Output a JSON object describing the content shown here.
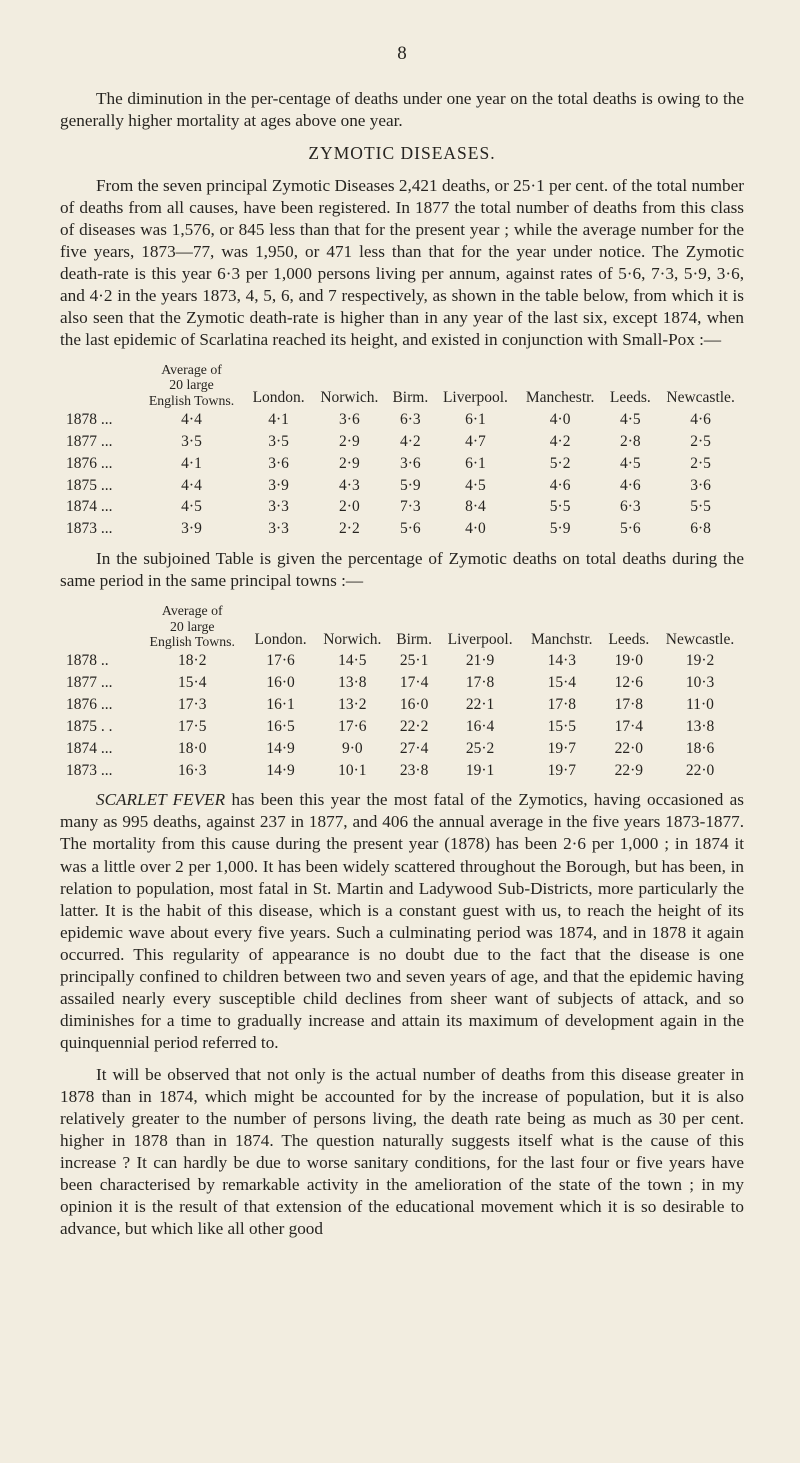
{
  "page_number": "8",
  "colors": {
    "bg": "#f2ede0",
    "ink": "#262420"
  },
  "fonts": {
    "body_pt": 17.2,
    "table_pt": 15.5,
    "header_pt": 17.5
  },
  "para1": "The diminution in the per-centage of deaths under one year on the total deaths is owing to the generally higher mortality at ages above one year.",
  "heading_zymotic": "ZYMOTIC DISEASES.",
  "para2": "From the seven principal Zymotic Diseases 2,421 deaths, or 25·1 per cent. of the total number of deaths from all causes, have been registered. In 1877 the total number of deaths from this class of diseases was 1,576, or 845 less than that for the present year ; while the average number for the five years, 1873—77, was 1,950, or 471 less than that for the year under notice. The Zymotic death-rate is this year 6·3 per 1,000 persons living per annum, against rates of 5·6, 7·3, 5·9, 3·6, and 4·2 in the years 1873, 4, 5, 6, and 7 respectively, as shown in the table below, from which it is also seen that the Zymotic death-rate is higher than in any year of the last six, except 1874, when the last epidemic of Scarlatina reached its height, and existed in conjunction with Small-Pox :—",
  "table1": {
    "avg_label_l1": "Average of",
    "avg_label_l2": "20 large",
    "avg_label_l3": "English Towns.",
    "cols": [
      "",
      "",
      "London.",
      "Norwich.",
      "Birm.",
      "Liverpool.",
      "Manchestr.",
      "Leeds.",
      "Newcastle."
    ],
    "rows": [
      [
        "1878 ...",
        "4·4",
        "4·1",
        "3·6",
        "6·3",
        "6·1",
        "4·0",
        "4·5",
        "4·6"
      ],
      [
        "1877 ...",
        "3·5",
        "3·5",
        "2·9",
        "4·2",
        "4·7",
        "4·2",
        "2·8",
        "2·5"
      ],
      [
        "1876 ...",
        "4·1",
        "3·6",
        "2·9",
        "3·6",
        "6·1",
        "5·2",
        "4·5",
        "2·5"
      ],
      [
        "1875 ...",
        "4·4",
        "3·9",
        "4·3",
        "5·9",
        "4·5",
        "4·6",
        "4·6",
        "3·6"
      ],
      [
        "1874 ...",
        "4·5",
        "3·3",
        "2·0",
        "7·3",
        "8·4",
        "5·5",
        "6·3",
        "5·5"
      ],
      [
        "1873 ...",
        "3·9",
        "3·3",
        "2·2",
        "5·6",
        "4·0",
        "5·9",
        "5·6",
        "6·8"
      ]
    ],
    "bold_col_index": 4
  },
  "para3": "In the subjoined Table is given the percentage of Zymotic deaths on total deaths during the same period in the same principal towns :—",
  "table2": {
    "avg_label_l1": "Average of",
    "avg_label_l2": "20 large",
    "avg_label_l3": "English Towns.",
    "cols": [
      "",
      "",
      "London.",
      "Norwich.",
      "Birm.",
      "Liverpool.",
      "Manchstr.",
      "Leeds.",
      "Newcastle."
    ],
    "rows": [
      [
        "1878  ..",
        "18·2",
        "17·6",
        "14·5",
        "25·1",
        "21·9",
        "14·3",
        "19·0",
        "19·2"
      ],
      [
        "1877 ...",
        "15·4",
        "16·0",
        "13·8",
        "17·4",
        "17·8",
        "15·4",
        "12·6",
        "10·3"
      ],
      [
        "1876 ...",
        "17·3",
        "16·1",
        "13·2",
        "16·0",
        "22·1",
        "17·8",
        "17·8",
        "11·0"
      ],
      [
        "1875 . .",
        "17·5",
        "16·5",
        "17·6",
        "22·2",
        "16·4",
        "15·5",
        "17·4",
        "13·8"
      ],
      [
        "1874 ...",
        "18·0",
        "14·9",
        "9·0",
        "27·4",
        "25·2",
        "19·7",
        "22·0",
        "18·6"
      ],
      [
        "1873 ...",
        "16·3",
        "14·9",
        "10·1",
        "23·8",
        "19·1",
        "19·7",
        "22·9",
        "22·0"
      ]
    ],
    "bold_col_index": 4
  },
  "para4_lead": "SCARLET FEVER",
  "para4": " has been this year the most fatal of the Zymotics, having occasioned as many as 995 deaths, against 237 in 1877, and 406 the annual average in the five years 1873-1877. The mortality from this cause during the present year (1878) has been 2·6 per 1,000 ; in 1874 it was a little over 2 per 1,000. It has been widely scattered throughout the Borough, but has been, in relation to population, most fatal in St. Martin and Ladywood Sub-Districts, more particularly the latter. It is the habit of this disease, which is a constant guest with us, to reach the height of its epidemic wave about every five years. Such a culminating period was 1874, and in 1878 it again occurred. This regularity of appearance is no doubt due to the fact that the disease is one principally confined to children between two and seven years of age, and that the epidemic having assailed nearly every susceptible child declines from sheer want of subjects of attack, and so diminishes for a time to gradually increase and attain its maximum of development again in the quinquennial period referred to.",
  "para5": "It will be observed that not only is the actual number of deaths from this disease greater in 1878 than in 1874, which might be accounted for by the increase of population, but it is also relatively greater to the number of persons living, the death rate being as much as 30 per cent. higher in 1878 than in 1874. The question naturally suggests itself what is the cause of this increase ? It can hardly be due to worse sanitary conditions, for the last four or five years have been characterised by remarkable activity in the amelioration of the state of the town ; in my opinion it is the result of that extension of the educational movement which it is so desirable to advance, but which like all other good"
}
